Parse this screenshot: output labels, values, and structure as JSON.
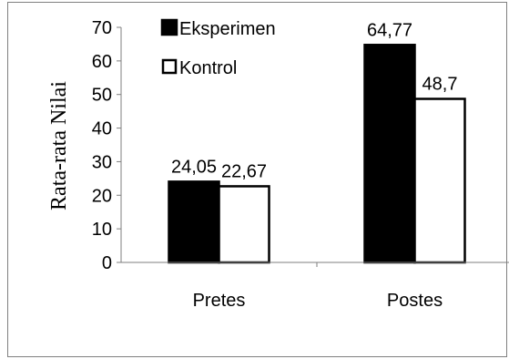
{
  "chart_data": {
    "type": "bar",
    "categories": [
      "Pretes",
      "Postes"
    ],
    "series": [
      {
        "name": "Eksperimen",
        "values": [
          24.05,
          64.77
        ],
        "labels": [
          "24,05",
          "64,77"
        ],
        "color": "#000000"
      },
      {
        "name": "Kontrol",
        "values": [
          22.67,
          48.7
        ],
        "labels": [
          "22,67",
          "48,7"
        ],
        "color": "#ffffff"
      }
    ],
    "ylabel": "Rata-rata Nilai",
    "xlabel": "",
    "ylim": [
      0,
      70
    ],
    "yticks": [
      0,
      10,
      20,
      30,
      40,
      50,
      60,
      70
    ],
    "grid": false,
    "legend": "top-left"
  }
}
